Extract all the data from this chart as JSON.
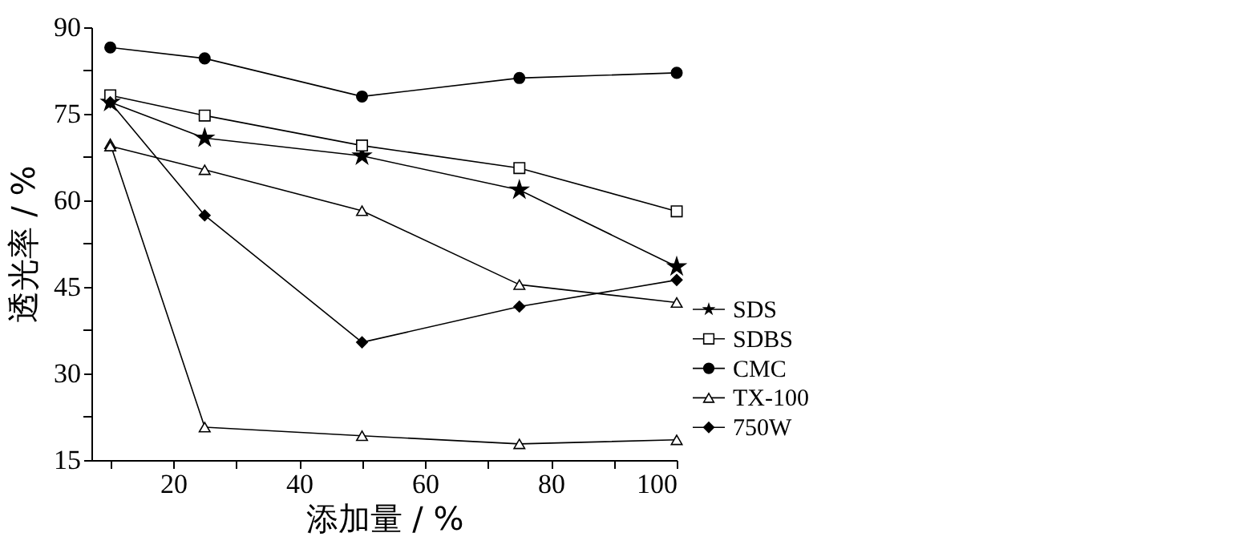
{
  "chart_data": {
    "type": "line",
    "xlabel": "添加量 / %",
    "ylabel": "透光率 / %",
    "x": [
      10,
      25,
      50,
      75,
      100
    ],
    "xlim": [
      7,
      100
    ],
    "xticks": [
      {
        "value": 10,
        "label": null
      },
      20,
      {
        "value": 30,
        "label": null
      },
      40,
      {
        "value": 50,
        "label": null
      },
      60,
      {
        "value": 70,
        "label": null
      },
      80,
      {
        "value": 90,
        "label": null
      },
      100
    ],
    "ylim": [
      15,
      90
    ],
    "yticks": [
      15,
      {
        "value": 22.5,
        "label": null
      },
      30,
      {
        "value": 37.5,
        "label": null
      },
      45,
      {
        "value": 52.5,
        "label": null
      },
      60,
      {
        "value": 67.5,
        "label": null
      },
      75,
      {
        "value": 82.5,
        "label": null
      },
      90
    ],
    "grid": false,
    "legend": "right",
    "series": [
      {
        "name": "SDS",
        "color": "#000000",
        "marker": "star",
        "values": [
          77.0,
          70.8,
          67.7,
          61.8,
          48.5
        ]
      },
      {
        "name": "SDBS",
        "color": "#000000",
        "marker": "square",
        "values": [
          78.2,
          74.7,
          69.5,
          65.6,
          58.1
        ]
      },
      {
        "name": "CMC",
        "color": "#000000",
        "marker": "circle",
        "values": [
          86.5,
          84.6,
          78.0,
          81.2,
          82.1
        ]
      },
      {
        "name": "TX-100",
        "color": "#000000",
        "marker": "triangle",
        "values": [
          69.8,
          20.7,
          19.2,
          17.8,
          18.5
        ]
      },
      {
        "name": "750W",
        "color": "#000000",
        "marker": "diamond",
        "values": [
          77.0,
          57.4,
          35.4,
          41.6,
          46.2
        ]
      },
      {
        "color": "#000000",
        "marker": "triangle",
        "values": [
          69.4,
          65.3,
          58.2,
          45.4,
          42.3
        ]
      }
    ]
  }
}
